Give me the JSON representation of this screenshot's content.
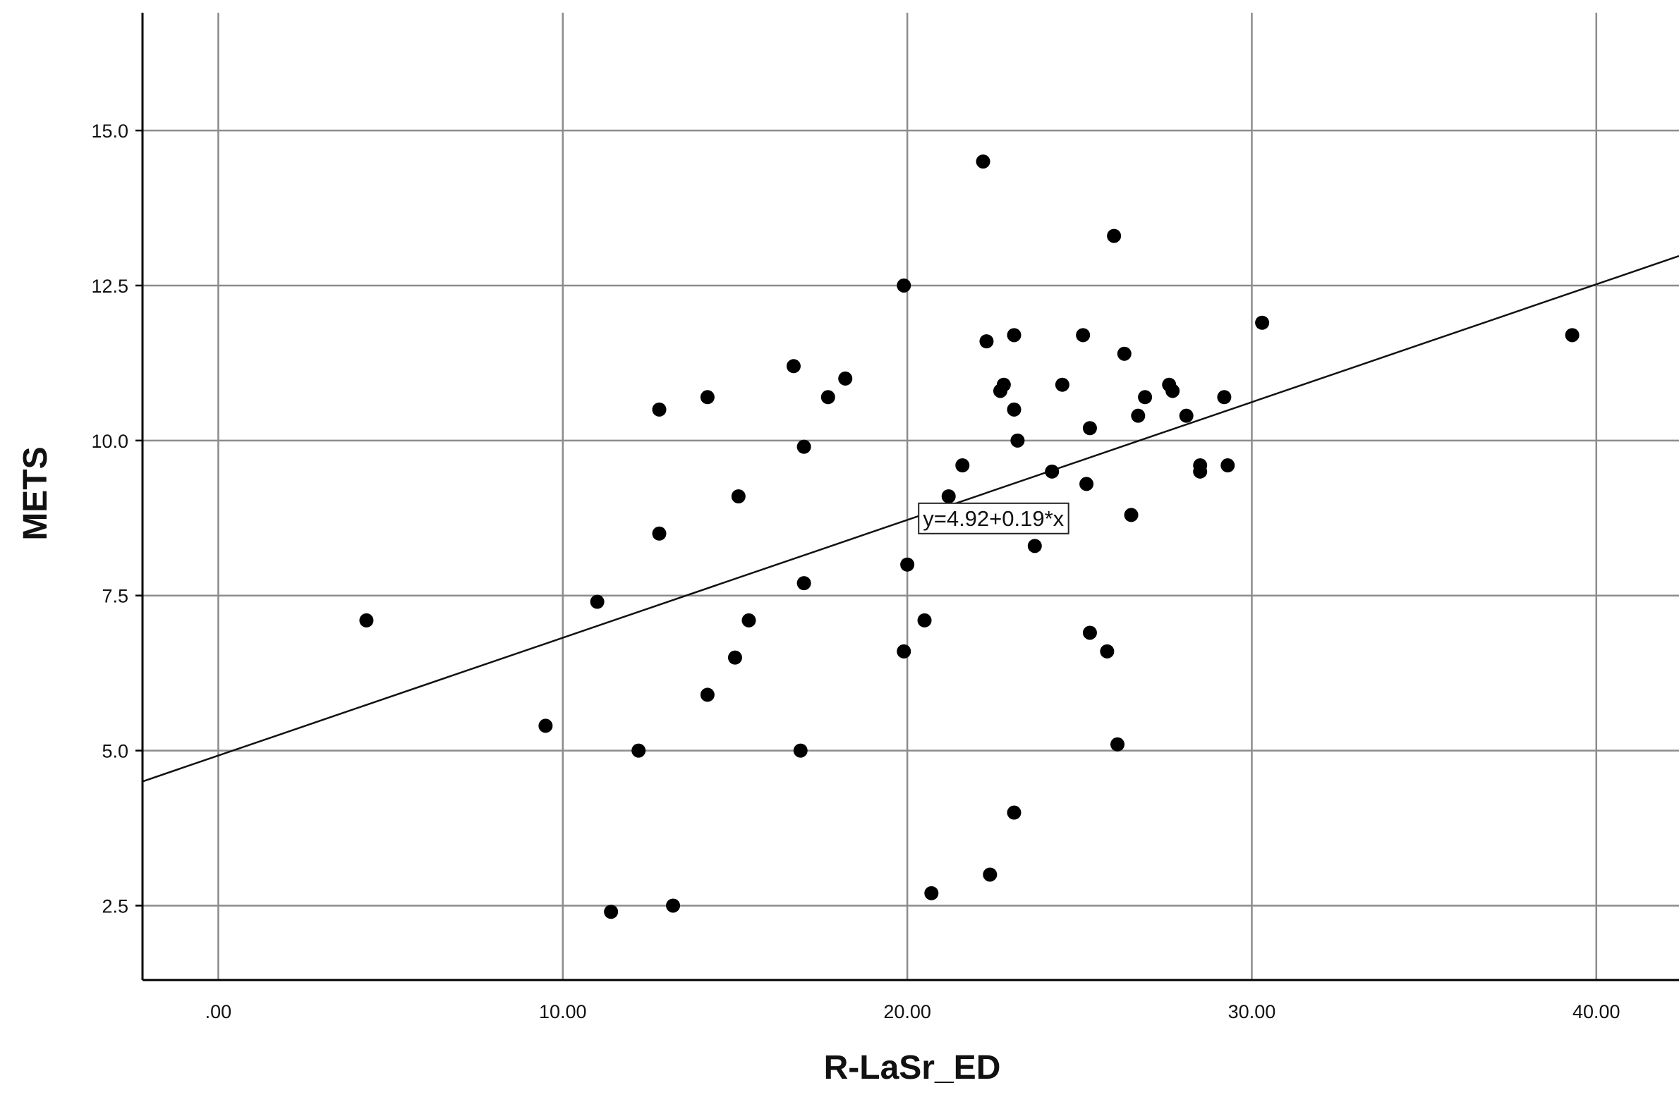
{
  "chart_data": {
    "type": "scatter",
    "xlabel": "R-LaSr_ED",
    "ylabel": "METS",
    "xlim": [
      -2.2,
      42.4
    ],
    "ylim": [
      1.3,
      16.9
    ],
    "x_ticks": [
      0,
      10,
      20,
      30,
      40
    ],
    "x_tick_labels": [
      ".00",
      "10.00",
      "20.00",
      "30.00",
      "40.00"
    ],
    "y_ticks": [
      2.5,
      5.0,
      7.5,
      10.0,
      12.5,
      15.0
    ],
    "y_tick_labels": [
      "2.5",
      "5.0",
      "7.5",
      "10.0",
      "12.5",
      "15.0"
    ],
    "grid": true,
    "points": [
      [
        4.3,
        7.1
      ],
      [
        9.5,
        5.4
      ],
      [
        11.0,
        7.4
      ],
      [
        11.4,
        2.4
      ],
      [
        12.2,
        5.0
      ],
      [
        12.8,
        10.5
      ],
      [
        12.8,
        8.5
      ],
      [
        13.2,
        2.5
      ],
      [
        14.2,
        5.9
      ],
      [
        14.2,
        10.7
      ],
      [
        15.0,
        6.5
      ],
      [
        15.1,
        9.1
      ],
      [
        15.4,
        7.1
      ],
      [
        16.7,
        11.2
      ],
      [
        16.9,
        5.0
      ],
      [
        17.0,
        7.7
      ],
      [
        17.0,
        9.9
      ],
      [
        17.7,
        10.7
      ],
      [
        18.2,
        11.0
      ],
      [
        19.9,
        12.5
      ],
      [
        19.9,
        6.6
      ],
      [
        20.0,
        8.0
      ],
      [
        20.5,
        7.1
      ],
      [
        20.7,
        2.7
      ],
      [
        21.2,
        9.1
      ],
      [
        21.6,
        9.6
      ],
      [
        22.2,
        14.5
      ],
      [
        22.3,
        11.6
      ],
      [
        22.4,
        3.0
      ],
      [
        22.7,
        10.8
      ],
      [
        22.8,
        10.9
      ],
      [
        23.1,
        11.7
      ],
      [
        23.1,
        10.5
      ],
      [
        23.1,
        4.0
      ],
      [
        23.2,
        10.0
      ],
      [
        23.7,
        8.3
      ],
      [
        24.2,
        9.5
      ],
      [
        24.5,
        10.9
      ],
      [
        25.1,
        11.7
      ],
      [
        25.2,
        9.3
      ],
      [
        25.3,
        10.2
      ],
      [
        25.3,
        6.9
      ],
      [
        25.8,
        6.6
      ],
      [
        26.0,
        13.3
      ],
      [
        26.1,
        5.1
      ],
      [
        26.3,
        11.4
      ],
      [
        26.5,
        8.8
      ],
      [
        26.7,
        10.4
      ],
      [
        26.9,
        10.7
      ],
      [
        27.6,
        10.9
      ],
      [
        27.7,
        10.8
      ],
      [
        28.1,
        10.4
      ],
      [
        28.5,
        9.6
      ],
      [
        28.5,
        9.5
      ],
      [
        29.2,
        10.7
      ],
      [
        29.3,
        9.6
      ],
      [
        30.3,
        11.9
      ],
      [
        39.3,
        11.7
      ]
    ],
    "fit_line": {
      "intercept": 4.92,
      "slope": 0.19,
      "label": "y=4.92+0.19*x",
      "label_at": [
        22.5,
        8.75
      ]
    },
    "marker_color": "#000000",
    "line_color": "#111111",
    "grid_color": "#8c8c8c"
  }
}
